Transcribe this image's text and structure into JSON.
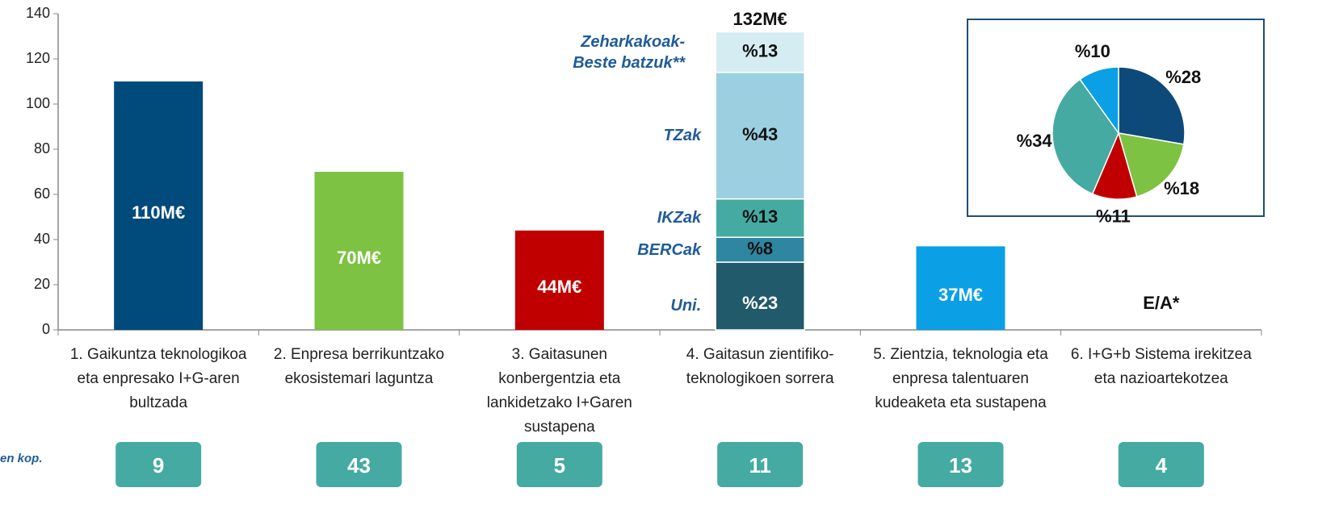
{
  "chart_data": {
    "type": "bar",
    "categories": [
      "1. Gaikuntza teknologikoa eta enpresako I+G-aren bultzada",
      "2. Enpresa berrikuntzako ekosistemari laguntza",
      "3. Gaitasunen konbergentzia eta lankidetzako I+Garen sustapena",
      "4. Gaitasun zientifiko-teknologikoen sorrera",
      "5. Zientzia, teknologia eta enpresa talentuaren kudeaketa eta sustapena",
      "6. I+G+b Sistema irekitzea eta nazioartekotzea"
    ],
    "values": [
      110,
      70,
      44,
      132,
      37,
      null
    ],
    "value_labels": [
      "110M€",
      "70M€",
      "44M€",
      "132M€",
      "37M€",
      "E/A*"
    ],
    "colors": [
      "#004a7c",
      "#7dc242",
      "#c00000",
      "#9ccfe0",
      "#0ba0e6",
      "#ffffff"
    ],
    "segments": [
      null,
      null,
      null,
      [
        {
          "name": "Uni.",
          "value": 30,
          "share_label": "%23",
          "color": "#215a6b"
        },
        {
          "name": "BERCak",
          "value": 11,
          "share_label": "%8",
          "color": "#2e86a0"
        },
        {
          "name": "IKZak",
          "value": 17,
          "share_label": "%13",
          "color": "#45aaa2"
        },
        {
          "name": "TZak",
          "value": 56,
          "share_label": "%43",
          "color": "#9ccfe0"
        },
        {
          "name": "Zeharkakoak- Beste batzuk**",
          "value": 18,
          "share_label": "%13",
          "color": "#d6ecf3"
        }
      ],
      null,
      null
    ],
    "counts": [
      9,
      43,
      5,
      11,
      13,
      4
    ],
    "count_color": "#45aaa2",
    "counts_label": "en kop.",
    "ylim": [
      0,
      140
    ],
    "yticks": [
      0,
      20,
      40,
      60,
      80,
      100,
      120,
      140
    ],
    "pie": {
      "type": "pie",
      "values": [
        28,
        18,
        11,
        34,
        10
      ],
      "value_labels": [
        "%28",
        "%18",
        "%11",
        "%34",
        "%10"
      ],
      "colors": [
        "#0d4a7a",
        "#7dc242",
        "#c00000",
        "#45aaa2",
        "#0ba0e6"
      ]
    }
  }
}
